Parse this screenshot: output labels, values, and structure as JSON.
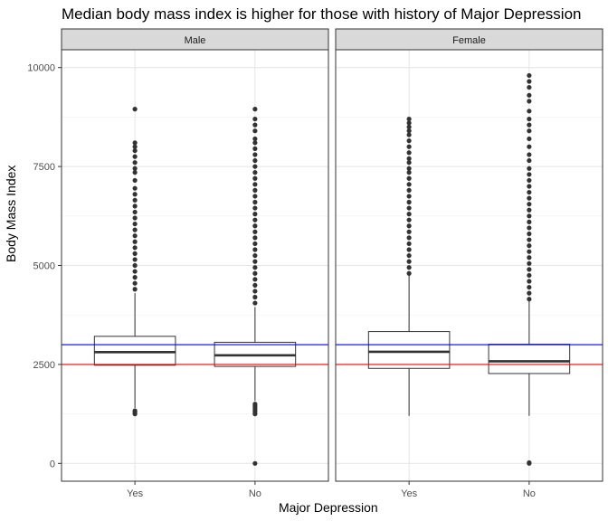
{
  "chart_data": {
    "type": "box",
    "title": "Median body mass index is higher for those with history of Major Depression",
    "xlabel": "Major Depression",
    "ylabel": "Body Mass Index",
    "categories": [
      "Yes",
      "No"
    ],
    "ylim": [
      -450,
      10450
    ],
    "yticks": [
      0,
      2500,
      5000,
      7500,
      10000
    ],
    "grid": true,
    "reference_lines": [
      {
        "value": 3000,
        "color": "#0000ff"
      },
      {
        "value": 2500,
        "color": "#ff0000"
      }
    ],
    "panels": [
      {
        "label": "Male",
        "groups": [
          {
            "category": "Yes",
            "whisker_low": 1400,
            "q1": 2480,
            "median": 2810,
            "q3": 3210,
            "whisker_high": 4300,
            "outliers": [
              1250,
              1290,
              1330,
              4400,
              4550,
              4700,
              4850,
              5000,
              5150,
              5300,
              5450,
              5600,
              5750,
              5900,
              6050,
              6200,
              6350,
              6500,
              6650,
              6800,
              6950,
              7150,
              7350,
              7450,
              7600,
              7750,
              7900,
              8000,
              8100,
              8950
            ]
          },
          {
            "category": "No",
            "whisker_low": 1580,
            "q1": 2450,
            "median": 2730,
            "q3": 3060,
            "whisker_high": 3950,
            "outliers": [
              0,
              1250,
              1300,
              1350,
              1400,
              1450,
              1500,
              4050,
              4200,
              4350,
              4500,
              4650,
              4800,
              4950,
              5100,
              5250,
              5400,
              5550,
              5700,
              5850,
              6000,
              6150,
              6300,
              6450,
              6600,
              6750,
              6900,
              7050,
              7200,
              7350,
              7500,
              7650,
              7800,
              7950,
              8100,
              8200,
              8400,
              8550,
              8700,
              8950
            ]
          }
        ]
      },
      {
        "label": "Female",
        "groups": [
          {
            "category": "Yes",
            "whisker_low": 1200,
            "q1": 2400,
            "median": 2820,
            "q3": 3330,
            "whisker_high": 4750,
            "outliers": [
              4800,
              4950,
              5100,
              5250,
              5400,
              5550,
              5700,
              5850,
              6000,
              6150,
              6300,
              6450,
              6600,
              6750,
              6900,
              7050,
              7200,
              7350,
              7450,
              7600,
              7700,
              7850,
              8000,
              8150,
              8300,
              8400,
              8500,
              8600,
              8700
            ]
          },
          {
            "category": "No",
            "whisker_low": 1200,
            "q1": 2270,
            "median": 2580,
            "q3": 3010,
            "whisker_high": 4100,
            "outliers": [
              0,
              20,
              4150,
              4300,
              4450,
              4600,
              4750,
              4900,
              5050,
              5200,
              5350,
              5500,
              5650,
              5800,
              5950,
              6100,
              6250,
              6400,
              6550,
              6700,
              6850,
              7000,
              7150,
              7300,
              7450,
              7650,
              7800,
              8000,
              8200,
              8400,
              8550,
              8700,
              8900,
              9150,
              9300,
              9500,
              9650,
              9800
            ]
          }
        ]
      }
    ]
  }
}
